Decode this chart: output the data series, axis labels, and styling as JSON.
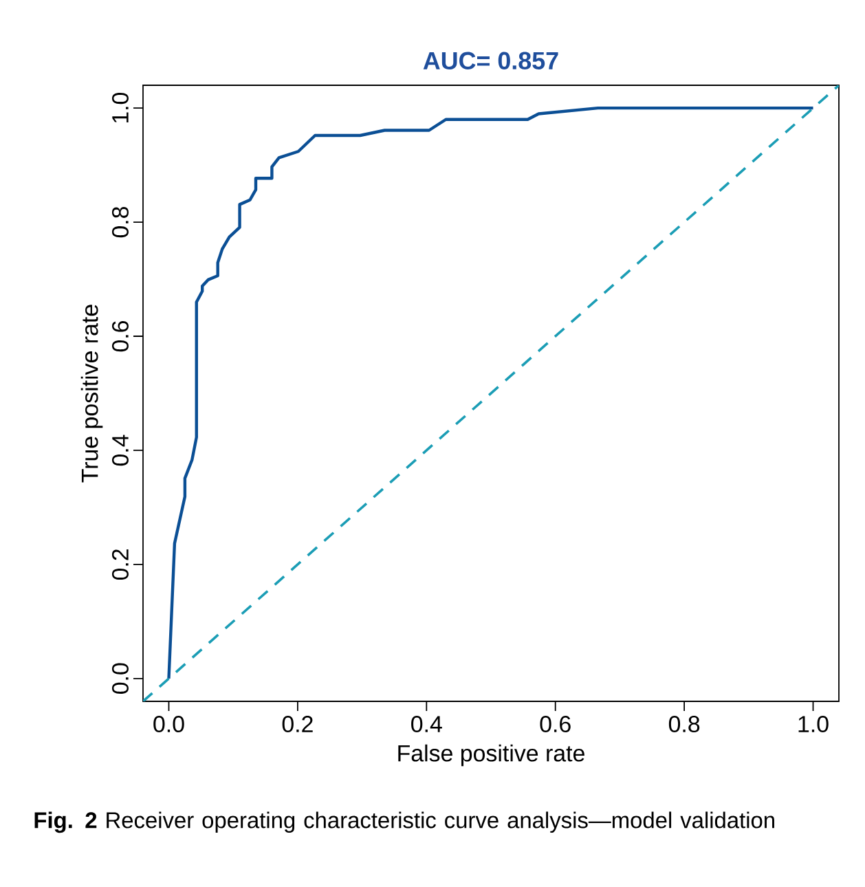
{
  "chart_data": {
    "type": "line",
    "title": "AUC= 0.857",
    "xlabel": "False positive rate",
    "ylabel": "True positive rate",
    "xlim": [
      -0.04,
      1.04
    ],
    "ylim": [
      -0.04,
      1.04
    ],
    "xticks": [
      {
        "value": 0,
        "label": "0.0"
      },
      {
        "value": 0.2,
        "label": "0.2"
      },
      {
        "value": 0.4,
        "label": "0.4"
      },
      {
        "value": 0.6,
        "label": "0.6"
      },
      {
        "value": 0.8,
        "label": "0.8"
      },
      {
        "value": 1,
        "label": "1.0"
      }
    ],
    "yticks": [
      {
        "value": 0,
        "label": "0.0"
      },
      {
        "value": 0.2,
        "label": "0.2"
      },
      {
        "value": 0.4,
        "label": "0.4"
      },
      {
        "value": 0.6,
        "label": "0.6"
      },
      {
        "value": 0.8,
        "label": "0.8"
      },
      {
        "value": 1,
        "label": "1.0"
      }
    ],
    "grid": false,
    "marker": "none",
    "series": [
      {
        "color": "#0b4f95",
        "line_style": "solid",
        "x": [
          0,
          0.009,
          0.025,
          0.025,
          0.036,
          0.043,
          0.043,
          0.052,
          0.052,
          0.061,
          0.076,
          0.076,
          0.083,
          0.094,
          0.11,
          0.11,
          0.126,
          0.135,
          0.135,
          0.16,
          0.16,
          0.171,
          0.201,
          0.227,
          0.297,
          0.335,
          0.404,
          0.43,
          0.557,
          0.574,
          0.666,
          1.0
        ],
        "values": [
          0,
          0.237,
          0.319,
          0.351,
          0.383,
          0.423,
          0.66,
          0.679,
          0.688,
          0.699,
          0.706,
          0.729,
          0.753,
          0.774,
          0.791,
          0.831,
          0.839,
          0.857,
          0.877,
          0.877,
          0.897,
          0.913,
          0.924,
          0.952,
          0.952,
          0.961,
          0.961,
          0.98,
          0.98,
          0.99,
          1.0,
          1.0
        ]
      },
      {
        "color": "#1b9db5",
        "line_style": "dashed",
        "x": [
          -0.04,
          1.04
        ],
        "values": [
          -0.04,
          1.04
        ]
      }
    ],
    "annotations": [
      "**Fig. 2** Receiver operating characteristic curve analysis—model validation"
    ]
  }
}
